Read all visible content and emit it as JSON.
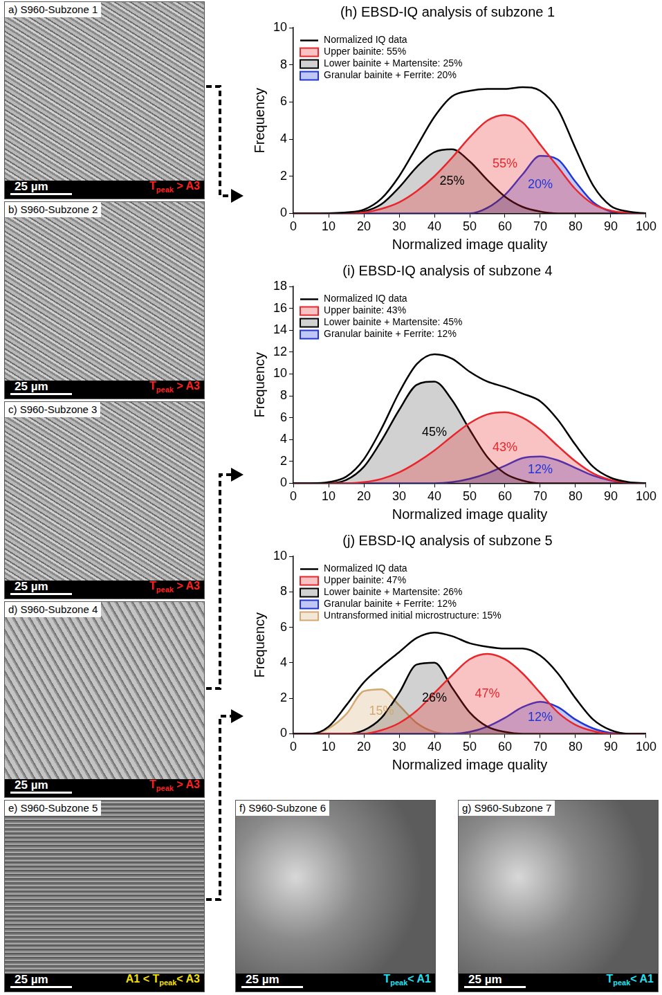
{
  "panels": [
    {
      "label": "a) S960-Subzone 1",
      "scale_bar": "25 µm",
      "temperature": [
        "T",
        "peak",
        " > A3"
      ],
      "temperature_color": "#ff2020"
    },
    {
      "label": "b) S960-Subzone 2",
      "scale_bar": "25 µm",
      "temperature": [
        "T",
        "peak",
        " > A3"
      ],
      "temperature_color": "#ff2020"
    },
    {
      "label": "c) S960-Subzone 3",
      "scale_bar": "25 µm",
      "temperature": [
        "T",
        "peak",
        " > A3"
      ],
      "temperature_color": "#ff2020"
    },
    {
      "label": "d) S960-Subzone 4",
      "scale_bar": "25 µm",
      "temperature": [
        "T",
        "peak",
        " > A3"
      ],
      "temperature_color": "#ff2020"
    },
    {
      "label": "e) S960-Subzone 5",
      "scale_bar": "25 µm",
      "temperature": [
        "A1 < T",
        "peak",
        "< A3"
      ],
      "temperature_color": "#f5e000"
    },
    {
      "label": "f) S960-Subzone 6",
      "scale_bar": "25 µm",
      "temperature": [
        "T",
        "peak",
        "< A1"
      ],
      "temperature_color": "#20e0f0"
    },
    {
      "label": "g) S960-Subzone 7",
      "scale_bar": "25 µm",
      "temperature": [
        "T",
        "peak",
        "< A1"
      ],
      "temperature_color": "#20e0f0"
    }
  ],
  "chart_data": [
    {
      "type": "line",
      "title": "(h) EBSD-IQ analysis of subzone 1",
      "x_label": "Normalized image quality",
      "y_label": "Frequency",
      "xlim": [
        0,
        100
      ],
      "xticks": [
        0,
        10,
        20,
        30,
        40,
        50,
        60,
        70,
        80,
        90,
        100
      ],
      "ylim": [
        0,
        10
      ],
      "yticks": [
        0,
        2,
        4,
        6,
        8,
        10
      ],
      "grid": false,
      "legend": "upper left",
      "x": [
        0,
        5,
        10,
        15,
        20,
        25,
        30,
        35,
        40,
        45,
        50,
        55,
        60,
        65,
        70,
        75,
        80,
        85,
        90,
        95,
        100
      ],
      "series": [
        {
          "name": "Normalized IQ data",
          "type": "line",
          "color": "#000000",
          "values": [
            0,
            0,
            0.01,
            0.05,
            0.2,
            0.8,
            2.0,
            3.6,
            5.2,
            6.3,
            6.6,
            6.7,
            6.7,
            6.8,
            6.6,
            5.6,
            3.5,
            1.5,
            0.4,
            0.1,
            0
          ]
        },
        {
          "name": "Upper bainite: 55%",
          "type": "area",
          "color": "#e8262b",
          "annotation": "55%",
          "values": [
            0,
            0,
            0,
            0,
            0.05,
            0.25,
            0.6,
            1.2,
            2.0,
            3.0,
            4.1,
            5.0,
            5.3,
            4.9,
            3.7,
            2.5,
            1.3,
            0.5,
            0.15,
            0.03,
            0
          ]
        },
        {
          "name": "Lower bainite + Martensite: 25%",
          "type": "area",
          "color": "#000000",
          "annotation": "25%",
          "values": [
            0,
            0,
            0,
            0,
            0.1,
            0.5,
            1.4,
            2.5,
            3.3,
            3.45,
            2.8,
            1.8,
            0.9,
            0.35,
            0.1,
            0,
            0,
            0,
            0,
            0,
            0
          ]
        },
        {
          "name": "Granular bainite + Ferrite: 20%",
          "type": "area",
          "color": "#1f35d6",
          "annotation": "20%",
          "values": [
            0,
            0,
            0,
            0,
            0,
            0,
            0,
            0,
            0,
            0,
            0,
            0.3,
            1.0,
            2.1,
            3.1,
            2.9,
            1.7,
            0.6,
            0.1,
            0,
            0
          ]
        }
      ]
    },
    {
      "type": "line",
      "title": "(i) EBSD-IQ analysis of subzone 4",
      "x_label": "Normalized image quality",
      "y_label": "Frequency",
      "xlim": [
        0,
        100
      ],
      "xticks": [
        0,
        10,
        20,
        30,
        40,
        50,
        60,
        70,
        80,
        90,
        100
      ],
      "ylim": [
        0,
        18
      ],
      "yticks": [
        0,
        2,
        4,
        6,
        8,
        10,
        12,
        14,
        16,
        18
      ],
      "grid": false,
      "legend": "upper left",
      "x": [
        0,
        5,
        10,
        15,
        20,
        25,
        30,
        35,
        40,
        45,
        50,
        55,
        60,
        65,
        70,
        75,
        80,
        85,
        90,
        95,
        100
      ],
      "series": [
        {
          "name": "Normalized IQ data",
          "type": "line",
          "color": "#000000",
          "values": [
            0,
            0,
            0.1,
            0.6,
            2.2,
            5.0,
            8.3,
            10.9,
            11.8,
            11.4,
            10.2,
            9.3,
            8.8,
            8.2,
            7.5,
            5.8,
            3.5,
            1.5,
            0.5,
            0.1,
            0
          ]
        },
        {
          "name": "Upper bainite: 43%",
          "type": "area",
          "color": "#e8262b",
          "annotation": "43%",
          "values": [
            0,
            0,
            0,
            0,
            0.1,
            0.4,
            1.0,
            1.9,
            3.0,
            4.3,
            5.5,
            6.3,
            6.5,
            6.0,
            4.9,
            3.4,
            2.0,
            0.9,
            0.3,
            0.05,
            0
          ]
        },
        {
          "name": "Lower bainite + Martensite: 45%",
          "type": "area",
          "color": "#000000",
          "annotation": "45%",
          "values": [
            0,
            0,
            0,
            0.3,
            1.5,
            3.9,
            6.7,
            9.0,
            9.3,
            7.6,
            4.9,
            2.4,
            0.9,
            0.25,
            0,
            0,
            0,
            0,
            0,
            0,
            0
          ]
        },
        {
          "name": "Granular bainite + Ferrite: 12%",
          "type": "area",
          "color": "#1f35d6",
          "annotation": "12%",
          "values": [
            0,
            0,
            0,
            0,
            0,
            0,
            0,
            0,
            0,
            0.1,
            0.4,
            0.9,
            1.6,
            2.3,
            2.45,
            2.1,
            1.4,
            0.7,
            0.25,
            0,
            0
          ]
        }
      ]
    },
    {
      "type": "line",
      "title": "(j) EBSD-IQ analysis of subzone 5",
      "x_label": "Normalized image quality",
      "y_label": "Frequency",
      "xlim": [
        0,
        100
      ],
      "xticks": [
        0,
        10,
        20,
        30,
        40,
        50,
        60,
        70,
        80,
        90,
        100
      ],
      "ylim": [
        0,
        10
      ],
      "yticks": [
        0,
        2,
        4,
        6,
        8,
        10
      ],
      "grid": false,
      "legend": "upper left",
      "x": [
        0,
        5,
        10,
        15,
        20,
        25,
        30,
        35,
        40,
        45,
        50,
        55,
        60,
        65,
        70,
        75,
        80,
        85,
        90,
        95,
        100
      ],
      "series": [
        {
          "name": "Normalized IQ data",
          "type": "line",
          "color": "#000000",
          "values": [
            0,
            0,
            0.4,
            1.6,
            2.9,
            3.8,
            4.6,
            5.4,
            5.7,
            5.5,
            5.1,
            4.9,
            4.8,
            4.8,
            4.4,
            3.4,
            2.0,
            0.8,
            0.2,
            0,
            0
          ]
        },
        {
          "name": "Upper bainite: 47%",
          "type": "area",
          "color": "#e8262b",
          "annotation": "47%",
          "values": [
            0,
            0,
            0,
            0,
            0,
            0.2,
            0.6,
            1.3,
            2.3,
            3.3,
            4.2,
            4.5,
            4.2,
            3.4,
            2.3,
            1.2,
            0.5,
            0.15,
            0,
            0,
            0
          ]
        },
        {
          "name": "Lower bainite + Martensite: 26%",
          "type": "area",
          "color": "#000000",
          "annotation": "26%",
          "values": [
            0,
            0,
            0,
            0,
            0.2,
            0.9,
            2.3,
            3.9,
            4.0,
            2.6,
            1.2,
            0.4,
            0.1,
            0,
            0,
            0,
            0,
            0,
            0,
            0,
            0
          ]
        },
        {
          "name": "Granular bainite + Ferrite: 12%",
          "type": "area",
          "color": "#1f35d6",
          "annotation": "12%",
          "values": [
            0,
            0,
            0,
            0,
            0,
            0,
            0,
            0,
            0,
            0,
            0.1,
            0.4,
            0.9,
            1.5,
            1.8,
            1.5,
            0.8,
            0.3,
            0.05,
            0,
            0
          ]
        },
        {
          "name": "Untransformed initial microstructure: 15%",
          "type": "area",
          "color": "#d4a870",
          "annotation": "15%",
          "values": [
            0,
            0,
            0.3,
            1.1,
            2.4,
            2.5,
            1.6,
            0.6,
            0.1,
            0,
            0,
            0,
            0,
            0,
            0,
            0,
            0,
            0,
            0,
            0,
            0
          ]
        }
      ]
    }
  ]
}
